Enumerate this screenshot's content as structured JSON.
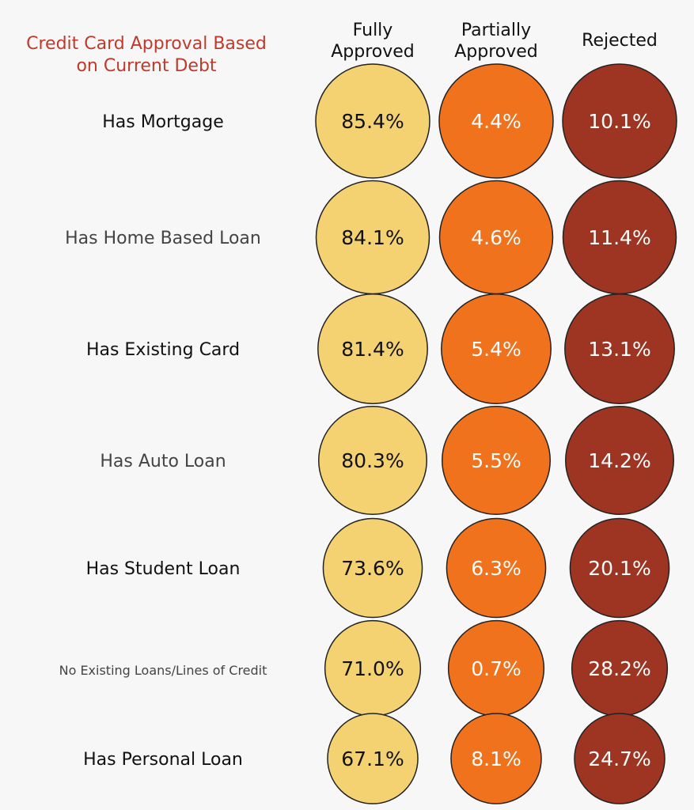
{
  "chart_data": {
    "type": "table",
    "title": "Credit Card Approval Based\non Current Debt",
    "columns": [
      "Fully\nApproved",
      "Partially\nApproved",
      "Rejected"
    ],
    "rows": [
      {
        "label": "Has Mortgage",
        "values": [
          85.4,
          4.4,
          10.1
        ]
      },
      {
        "label": "Has Home Based Loan",
        "values": [
          84.1,
          4.6,
          11.4
        ]
      },
      {
        "label": "Has Existing Card",
        "values": [
          81.4,
          5.4,
          13.1
        ]
      },
      {
        "label": "Has Auto Loan",
        "values": [
          80.3,
          5.5,
          14.2
        ]
      },
      {
        "label": "Has Student Loan",
        "values": [
          73.6,
          6.3,
          20.1
        ]
      },
      {
        "label": "No Existing Loans/Lines of Credit",
        "values": [
          71.0,
          0.7,
          28.2
        ]
      },
      {
        "label": "Has Personal Loan",
        "values": [
          67.1,
          8.1,
          24.7
        ]
      }
    ],
    "unit": "%",
    "colors": {
      "fully": "#f4d272",
      "partial": "#f0721d",
      "rejected": "#9d3522",
      "title": "#c0392b",
      "background": "#f7f7f7"
    },
    "text_colors": [
      "#111111",
      "#ffffff",
      "#ffffff"
    ]
  }
}
